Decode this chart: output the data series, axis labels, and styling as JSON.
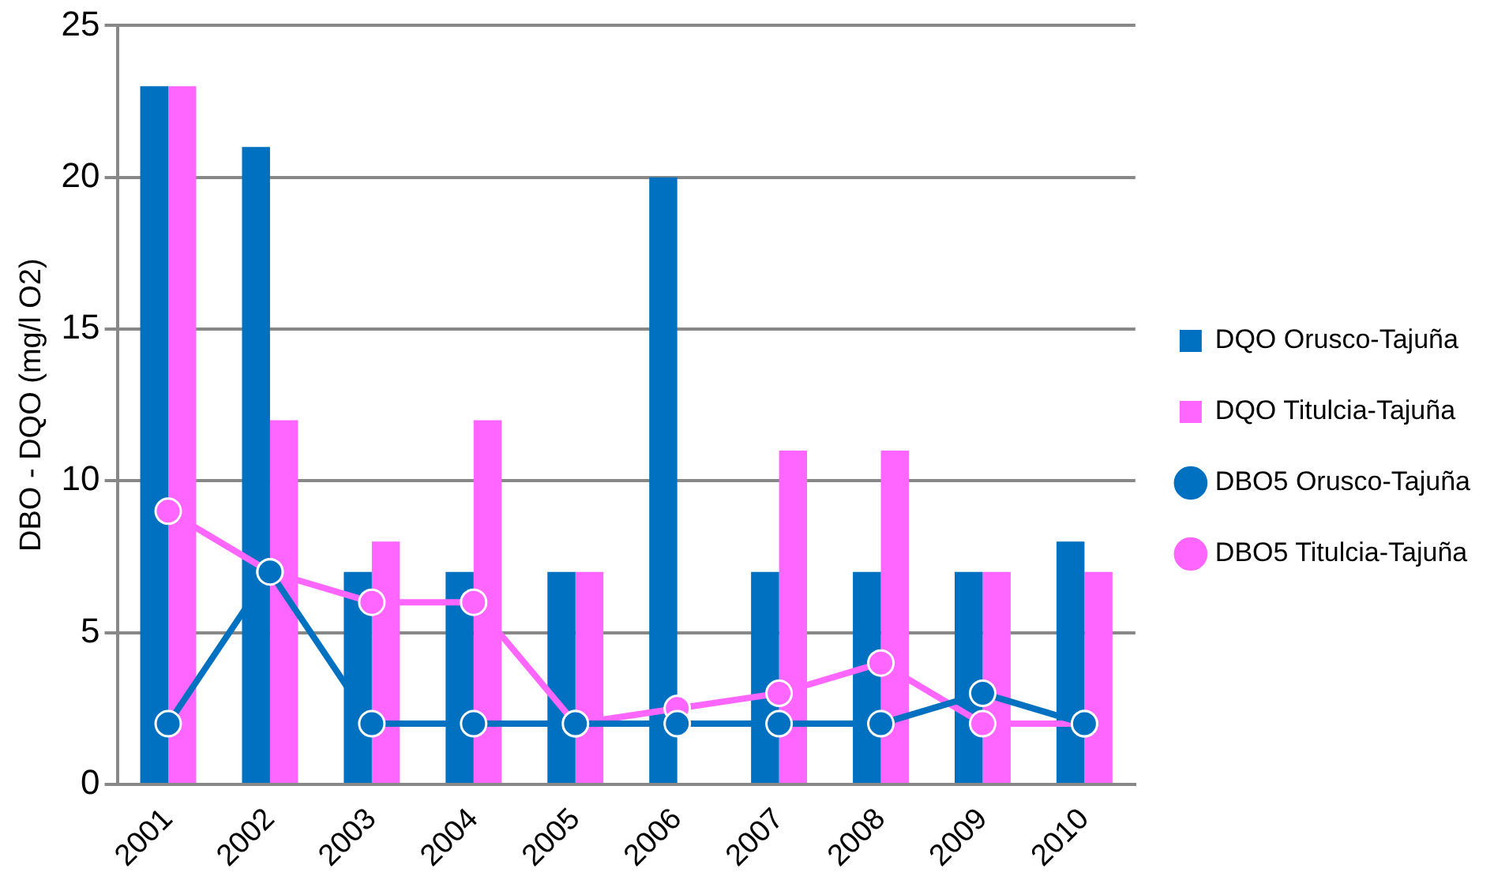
{
  "chart_data": {
    "type": "bar",
    "ylabel": "DBO - DQO (mg/l O2)",
    "categories": [
      "2001",
      "2002",
      "2003",
      "2004",
      "2005",
      "2006",
      "2007",
      "2008",
      "2009",
      "2010"
    ],
    "series": [
      {
        "name": "DQO Orusco-Tajuña",
        "color": "#0070c0",
        "values": [
          23,
          21,
          7,
          7,
          7,
          20,
          7,
          7,
          7,
          8
        ]
      },
      {
        "name": "DQO Titulcia-Tajuña",
        "color": "#ff66ff",
        "values": [
          23,
          12,
          8,
          12,
          7,
          null,
          11,
          11,
          7,
          7
        ]
      },
      {
        "name": "DBO5 Orusco-Tajuña",
        "type": "line",
        "color": "#0070c0",
        "values": [
          2,
          7,
          2,
          2,
          2,
          2,
          2,
          2,
          3,
          2
        ]
      },
      {
        "name": "DBO5 Titulcia-Tajuña",
        "type": "line",
        "color": "#ff66ff",
        "values": [
          9,
          7,
          6,
          6,
          2,
          2.5,
          3,
          4,
          2,
          2
        ]
      }
    ],
    "ylim": [
      0,
      25
    ],
    "yticks": [
      0,
      5,
      10,
      15,
      20,
      25
    ],
    "grid": "y",
    "legend": "right",
    "marker": "circle"
  }
}
